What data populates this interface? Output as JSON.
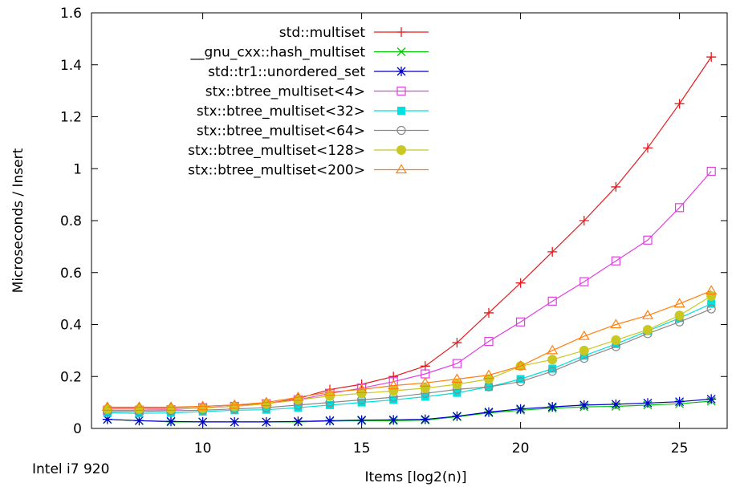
{
  "chart_data": {
    "type": "line",
    "title": "",
    "xlabel": "Items [log2(n)]",
    "ylabel": "Microseconds / Insert",
    "corner_label": "Intel i7 920",
    "xlim": [
      6.5,
      26.5
    ],
    "ylim": [
      0,
      1.6
    ],
    "xticks": [
      10,
      15,
      20,
      25
    ],
    "yticks": [
      0,
      0.2,
      0.4,
      0.6,
      0.8,
      1,
      1.2,
      1.4,
      1.6
    ],
    "ytick_labels": [
      "0",
      "0.2",
      "0.4",
      "0.6",
      "0.8",
      "1",
      "1.2",
      "1.4",
      "1.6"
    ],
    "grid": false,
    "legend_position": "top-left",
    "x": [
      7,
      8,
      9,
      10,
      11,
      12,
      13,
      14,
      15,
      16,
      17,
      18,
      19,
      20,
      21,
      22,
      23,
      24,
      25,
      26
    ],
    "series": [
      {
        "name": "std::multiset",
        "color": "#e41a1c",
        "marker": "plus",
        "values": [
          0.08,
          0.08,
          0.08,
          0.085,
          0.09,
          0.095,
          0.115,
          0.15,
          0.17,
          0.2,
          0.24,
          0.33,
          0.445,
          0.56,
          0.68,
          0.8,
          0.93,
          1.08,
          1.25,
          1.43
        ]
      },
      {
        "name": "__gnu_cxx::hash_multiset",
        "color": "#00c800",
        "marker": "x",
        "values": [
          0.035,
          0.03,
          0.025,
          0.025,
          0.025,
          0.025,
          0.025,
          0.028,
          0.03,
          0.03,
          0.032,
          0.045,
          0.06,
          0.07,
          0.078,
          0.083,
          0.085,
          0.09,
          0.095,
          0.105
        ]
      },
      {
        "name": "std::tr1::unordered_set",
        "color": "#0000cc",
        "marker": "star",
        "values": [
          0.035,
          0.03,
          0.027,
          0.025,
          0.025,
          0.025,
          0.027,
          0.03,
          0.032,
          0.033,
          0.035,
          0.047,
          0.063,
          0.075,
          0.083,
          0.09,
          0.093,
          0.098,
          0.103,
          0.113
        ]
      },
      {
        "name": "stx::btree_multiset<4>",
        "color": "#e040e0",
        "marker": "square-open",
        "values": [
          0.07,
          0.07,
          0.072,
          0.08,
          0.085,
          0.095,
          0.11,
          0.135,
          0.155,
          0.18,
          0.21,
          0.25,
          0.335,
          0.41,
          0.49,
          0.565,
          0.645,
          0.725,
          0.85,
          0.99
        ]
      },
      {
        "name": "stx::btree_multiset<32>",
        "color": "#00e0e0",
        "marker": "square-filled",
        "values": [
          0.06,
          0.058,
          0.06,
          0.065,
          0.07,
          0.072,
          0.08,
          0.09,
          0.1,
          0.11,
          0.122,
          0.137,
          0.16,
          0.19,
          0.23,
          0.28,
          0.325,
          0.375,
          0.425,
          0.48
        ]
      },
      {
        "name": "stx::btree_multiset<64>",
        "color": "#888888",
        "marker": "circle-open",
        "values": [
          0.065,
          0.065,
          0.068,
          0.07,
          0.075,
          0.08,
          0.09,
          0.1,
          0.11,
          0.12,
          0.135,
          0.15,
          0.16,
          0.18,
          0.22,
          0.27,
          0.315,
          0.365,
          0.41,
          0.46
        ]
      },
      {
        "name": "stx::btree_multiset<128>",
        "color": "#c8c820",
        "marker": "circle-filled",
        "values": [
          0.075,
          0.075,
          0.075,
          0.078,
          0.085,
          0.095,
          0.11,
          0.125,
          0.135,
          0.145,
          0.155,
          0.17,
          0.19,
          0.24,
          0.265,
          0.3,
          0.34,
          0.38,
          0.435,
          0.51
        ]
      },
      {
        "name": "stx::btree_multiset<200>",
        "color": "#ff7f0e",
        "marker": "triangle-open",
        "values": [
          0.082,
          0.082,
          0.082,
          0.085,
          0.09,
          0.1,
          0.12,
          0.14,
          0.15,
          0.165,
          0.175,
          0.19,
          0.205,
          0.24,
          0.3,
          0.355,
          0.4,
          0.435,
          0.48,
          0.53
        ]
      }
    ]
  }
}
